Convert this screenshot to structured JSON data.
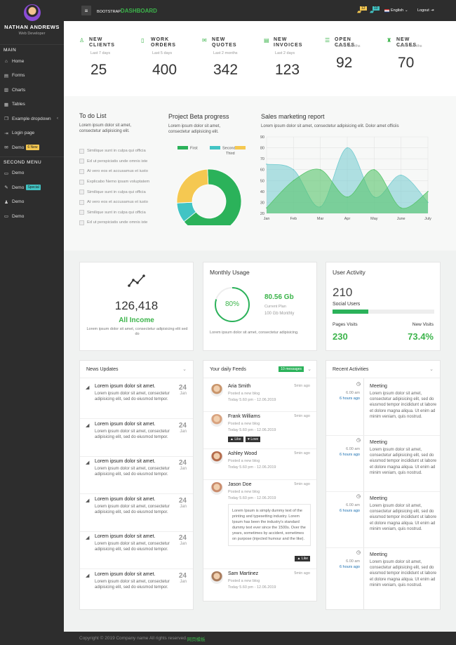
{
  "sidebar": {
    "user_name": "NATHAN ANDREWS",
    "user_role": "Web Developer",
    "main_title": "MAIN",
    "second_title": "SECOND MENU",
    "main_items": [
      {
        "label": "Home",
        "icon": "home-icon",
        "glyph": "⌂"
      },
      {
        "label": "Forms",
        "icon": "file-icon",
        "glyph": "▤"
      },
      {
        "label": "Charts",
        "icon": "chart-icon",
        "glyph": "▥"
      },
      {
        "label": "Tables",
        "icon": "table-icon",
        "glyph": "▦"
      },
      {
        "label": "Example dropdown",
        "icon": "copy-icon",
        "glyph": "❐"
      },
      {
        "label": "Login page",
        "icon": "login-icon",
        "glyph": "⇥"
      },
      {
        "label": "Demo",
        "icon": "mail-icon",
        "glyph": "✉"
      }
    ],
    "demo_badge": "6 New",
    "second_items": [
      {
        "label": "Demo",
        "icon": "desktop-icon",
        "glyph": "▭"
      },
      {
        "label": "Demo",
        "icon": "pencil-icon",
        "glyph": "✎"
      },
      {
        "label": "Demo",
        "icon": "user-icon",
        "glyph": "♟"
      },
      {
        "label": "Demo",
        "icon": "comment-icon",
        "glyph": "▭"
      }
    ],
    "special_badge": "Special"
  },
  "topbar": {
    "brand_small": "BOOTSTRAP",
    "brand_big": "DASHBOARD",
    "notif_count": "12",
    "msg_count": "10",
    "language": "English",
    "logout": "Logout"
  },
  "stats": [
    {
      "label1": "NEW",
      "label2": "CLIENTS",
      "sub": "Last 7 days",
      "value": "25",
      "icon": "user-icon",
      "glyph": "♙"
    },
    {
      "label1": "WORK",
      "label2": "ORDERS",
      "sub": "Last 5 days",
      "value": "400",
      "icon": "clipboard-icon",
      "glyph": "▯"
    },
    {
      "label1": "NEW",
      "label2": "QUOTES",
      "sub": "Last 2 months",
      "value": "342",
      "icon": "envelope-icon",
      "glyph": "✉"
    },
    {
      "label1": "NEW",
      "label2": "INVOICES",
      "sub": "Last 2 days",
      "value": "123",
      "icon": "invoice-icon",
      "glyph": "▤"
    },
    {
      "label1": "OPEN CASES",
      "label2": "",
      "sub": "Last 3 months",
      "value": "92",
      "icon": "list-icon",
      "glyph": "☰"
    },
    {
      "label1": "NEW CASES",
      "label2": "",
      "sub": "Last 6 months",
      "value": "70",
      "icon": "graduation-icon",
      "glyph": "♜"
    }
  ],
  "todo": {
    "title": "To do List",
    "desc1": "Lorem ipsum dolor sit amet,",
    "desc2": "consectetur adipisicing elit.",
    "items": [
      "Similique sunt in culpa qui officia",
      "Ed ut perspiciatis unde omnis iste",
      "At vero eos et accusamus et iusto",
      "Explicabo Nemo ipsam voluptatem",
      "Similique sunt in culpa qui officia",
      "At vero eos et accusamus et iusto",
      "Similique sunt in culpa qui officia",
      "Ed ut perspiciatis unde omnis iste"
    ]
  },
  "project": {
    "title": "Project Beta progress",
    "desc1": "Lorem ipsum dolor sit amet,",
    "desc2": "consectetur adipisicing elit."
  },
  "sales": {
    "title": "Sales marketing report",
    "desc": "Lorem ipsum dolor sit amet, consectetur adipisicing elit. Dolor amet officiis"
  },
  "income": {
    "value": "126,418",
    "label": "All Income",
    "desc": "Lorem ipsum dolor sit amet, consectetur adipisicing elit sed do"
  },
  "usage": {
    "title": "Monthly Usage",
    "percent": "80%",
    "value": "80.56 Gb",
    "plan": "Current Plan",
    "plan_detail": "100 Gb Monthly",
    "desc": "Lorem ipsum dolor sit amet, consectetur adipisicing.",
    "fraction": 0.8
  },
  "activity": {
    "title": "User Activity",
    "users_value": "210",
    "users_label": "Social Users",
    "users_fraction": 0.35,
    "pages_label": "Pages Visits",
    "pages_value": "230",
    "new_label": "New Visits",
    "new_value": "73.4%"
  },
  "news": {
    "title": "News Updates",
    "items": [
      {
        "title": "Lorem ipsum dolor sit amet.",
        "body": "Lorem ipsum dolor sit amet, consectetur adipisicing elit, sed do eiusmod tempor.",
        "day": "24",
        "month": "Jan"
      },
      {
        "title": "Lorem ipsum dolor sit amet.",
        "body": "Lorem ipsum dolor sit amet, consectetur adipisicing elit, sed do eiusmod tempor.",
        "day": "24",
        "month": "Jan"
      },
      {
        "title": "Lorem ipsum dolor sit amet.",
        "body": "Lorem ipsum dolor sit amet, consectetur adipisicing elit, sed do eiusmod tempor.",
        "day": "24",
        "month": "Jan"
      },
      {
        "title": "Lorem ipsum dolor sit amet.",
        "body": "Lorem ipsum dolor sit amet, consectetur adipisicing elit, sed do eiusmod tempor.",
        "day": "24",
        "month": "Jan"
      },
      {
        "title": "Lorem ipsum dolor sit amet.",
        "body": "Lorem ipsum dolor sit amet, consectetur adipisicing elit, sed do eiusmod tempor.",
        "day": "24",
        "month": "Jan"
      },
      {
        "title": "Lorem ipsum dolor sit amet.",
        "body": "Lorem ipsum dolor sit amet, consectetur adipisicing elit, sed do eiusmod tempor.",
        "day": "24",
        "month": "Jan"
      }
    ]
  },
  "feeds": {
    "title": "Your daily Feeds",
    "badge": "10 messages",
    "like": "Like",
    "love": "Love",
    "quote": "Lorem Ipsum is simply dummy text of the printing and typesetting industry. Lorem Ipsum has been the industry's standard dummy text ever since the 1500s. Over the years, sometimes by accident, sometimes on purpose (injected humour and the like).",
    "items": [
      {
        "name": "Aria Smith",
        "action": "Posted a new blog",
        "time": "Today 5.60 pm - 12.06.2019",
        "ago": "5min ago"
      },
      {
        "name": "Frank Williams",
        "action": "Posted a new blog",
        "time": "Today 5.60 pm - 12.06.2019",
        "ago": "5min ago"
      },
      {
        "name": "Ashley Wood",
        "action": "Posted a new blog",
        "time": "Today 5.60 pm - 12.06.2019",
        "ago": "5min ago"
      },
      {
        "name": "Jason Doe",
        "action": "Posted a new blog",
        "time": "Today 5.60 pm - 12.06.2019",
        "ago": "5min ago"
      },
      {
        "name": "Sam Martinez",
        "action": "Posted a new blog",
        "time": "Today 5.60 pm - 12.06.2019",
        "ago": "5min ago"
      }
    ]
  },
  "recent": {
    "title": "Recent Activities",
    "items": [
      {
        "time": "6.00 am",
        "ago": "6 hours ago",
        "title": "Meeting",
        "body": "Lorem ipsum dolor sit amet, consectetur adipisicing elit, sed do eiusmod tempor incididunt ut labore et dolore magna aliqua. Ut enim ad minim veniam, quis nostrud."
      },
      {
        "time": "6.00 am",
        "ago": "6 hours ago",
        "title": "Meeting",
        "body": "Lorem ipsum dolor sit amet, consectetur adipisicing elit, sed do eiusmod tempor incididunt ut labore et dolore magna aliqua. Ut enim ad minim veniam, quis nostrud."
      },
      {
        "time": "6.00 am",
        "ago": "6 hours ago",
        "title": "Meeting",
        "body": "Lorem ipsum dolor sit amet, consectetur adipisicing elit, sed do eiusmod tempor incididunt ut labore et dolore magna aliqua. Ut enim ad minim veniam, quis nostrud."
      },
      {
        "time": "6.00 am",
        "ago": "6 hours ago",
        "title": "Meeting",
        "body": "Lorem ipsum dolor sit amet, consectetur adipisicing elit, sed do eiusmod tempor incididunt ut labore et dolore magna aliqua. Ut enim ad minim veniam, quis nostrud."
      }
    ]
  },
  "footer": {
    "text": "Copyright © 2019 Company name All rights reserved.",
    "link": "网页模板"
  },
  "chart_data": [
    {
      "type": "pie",
      "legend": [
        "First",
        "Second",
        "Third"
      ],
      "values": [
        65,
        10,
        25
      ],
      "colors": [
        "#2bb25a",
        "#42c4c4",
        "#f5c851"
      ]
    },
    {
      "type": "area",
      "categories": [
        "Jan",
        "Feb",
        "Mar",
        "Apr",
        "May",
        "June",
        "July"
      ],
      "ylim": [
        20,
        90
      ],
      "yticks": [
        "20",
        "30",
        "40",
        "50",
        "60",
        "70",
        "80",
        "90"
      ],
      "series": [
        {
          "values": [
            65,
            60,
            26,
            80,
            35,
            55,
            30
          ],
          "color": "#72cbd0"
        },
        {
          "values": [
            25,
            50,
            60,
            35,
            60,
            25,
            40
          ],
          "color": "#57c46a"
        }
      ]
    }
  ]
}
